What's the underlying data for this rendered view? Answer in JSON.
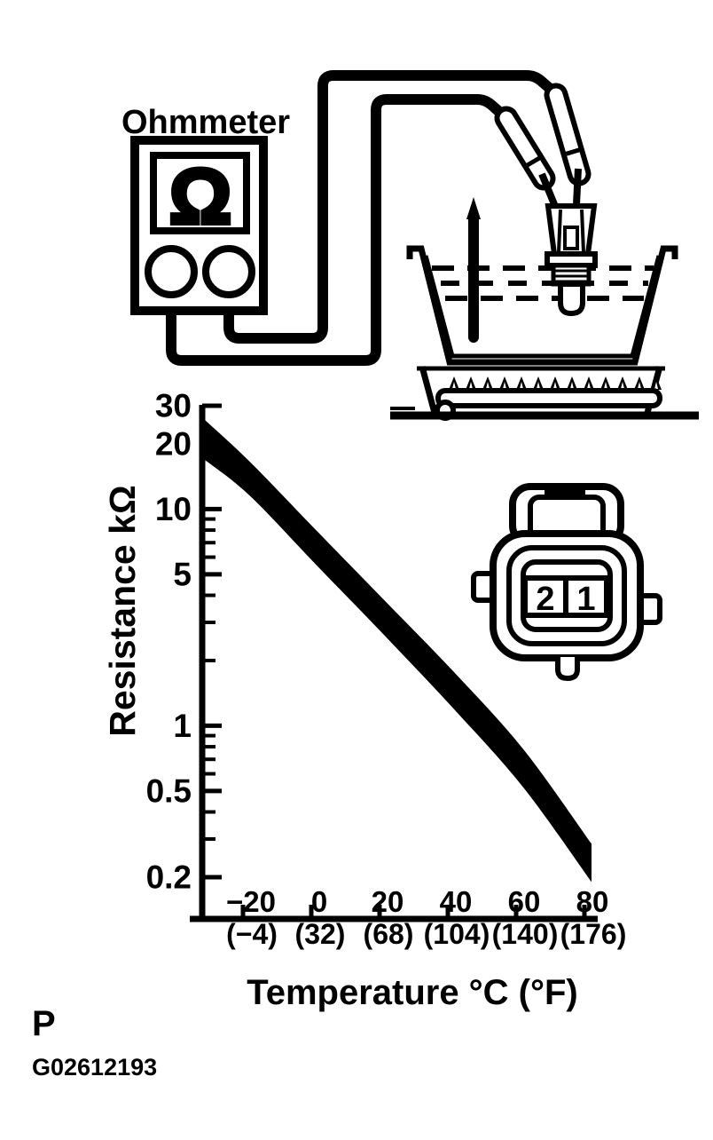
{
  "colors": {
    "ink": "#000000",
    "paper": "#ffffff"
  },
  "apparatus": {
    "ohmmeter_label": "Ohmmeter",
    "display_symbol": "Ω"
  },
  "connector_view": {
    "pin_left_label": "2",
    "pin_right_label": "1"
  },
  "footer": {
    "page_letter": "P",
    "figure_code": "G02612193"
  },
  "chart_data": {
    "type": "area",
    "title": "",
    "ylabel": "Resistance kΩ",
    "xlabel": "Temperature °C (°F)",
    "y_scale": "log",
    "ylim": [
      0.15,
      30
    ],
    "xlim_c": [
      -33.5,
      80
    ],
    "grid": false,
    "legend": false,
    "yticks": [
      {
        "value": 30,
        "label": "30"
      },
      {
        "value": 20,
        "label": "20"
      },
      {
        "value": 10,
        "label": "10"
      },
      {
        "value": 5,
        "label": "5"
      },
      {
        "value": 1,
        "label": "1"
      },
      {
        "value": 0.5,
        "label": "0.5"
      },
      {
        "value": 0.2,
        "label": "0.2"
      }
    ],
    "yticks_minor": [
      9,
      8,
      7,
      6,
      4,
      3,
      2,
      0.9,
      0.8,
      0.7,
      0.6,
      0.4,
      0.3
    ],
    "xticks": [
      {
        "c": -20,
        "label_c": "−20",
        "label_f": "(−4)"
      },
      {
        "c": 0,
        "label_c": "0",
        "label_f": "(32)"
      },
      {
        "c": 20,
        "label_c": "20",
        "label_f": "(68)"
      },
      {
        "c": 40,
        "label_c": "40",
        "label_f": "(104)"
      },
      {
        "c": 60,
        "label_c": "60",
        "label_f": "(140)"
      },
      {
        "c": 80,
        "label_c": "80",
        "label_f": "(176)"
      }
    ],
    "series": [
      {
        "name": "acceptable-resistance-band",
        "points": [
          {
            "t_c": -33.5,
            "upper_kohm": 26,
            "lower_kohm": 17
          },
          {
            "t_c": -20,
            "upper_kohm": 16.5,
            "lower_kohm": 11.5
          },
          {
            "t_c": 0,
            "upper_kohm": 7.8,
            "lower_kohm": 5.4
          },
          {
            "t_c": 20,
            "upper_kohm": 3.7,
            "lower_kohm": 2.55
          },
          {
            "t_c": 40,
            "upper_kohm": 1.75,
            "lower_kohm": 1.18
          },
          {
            "t_c": 60,
            "upper_kohm": 0.78,
            "lower_kohm": 0.52
          },
          {
            "t_c": 80,
            "upper_kohm": 0.285,
            "lower_kohm": 0.19
          }
        ]
      }
    ]
  }
}
